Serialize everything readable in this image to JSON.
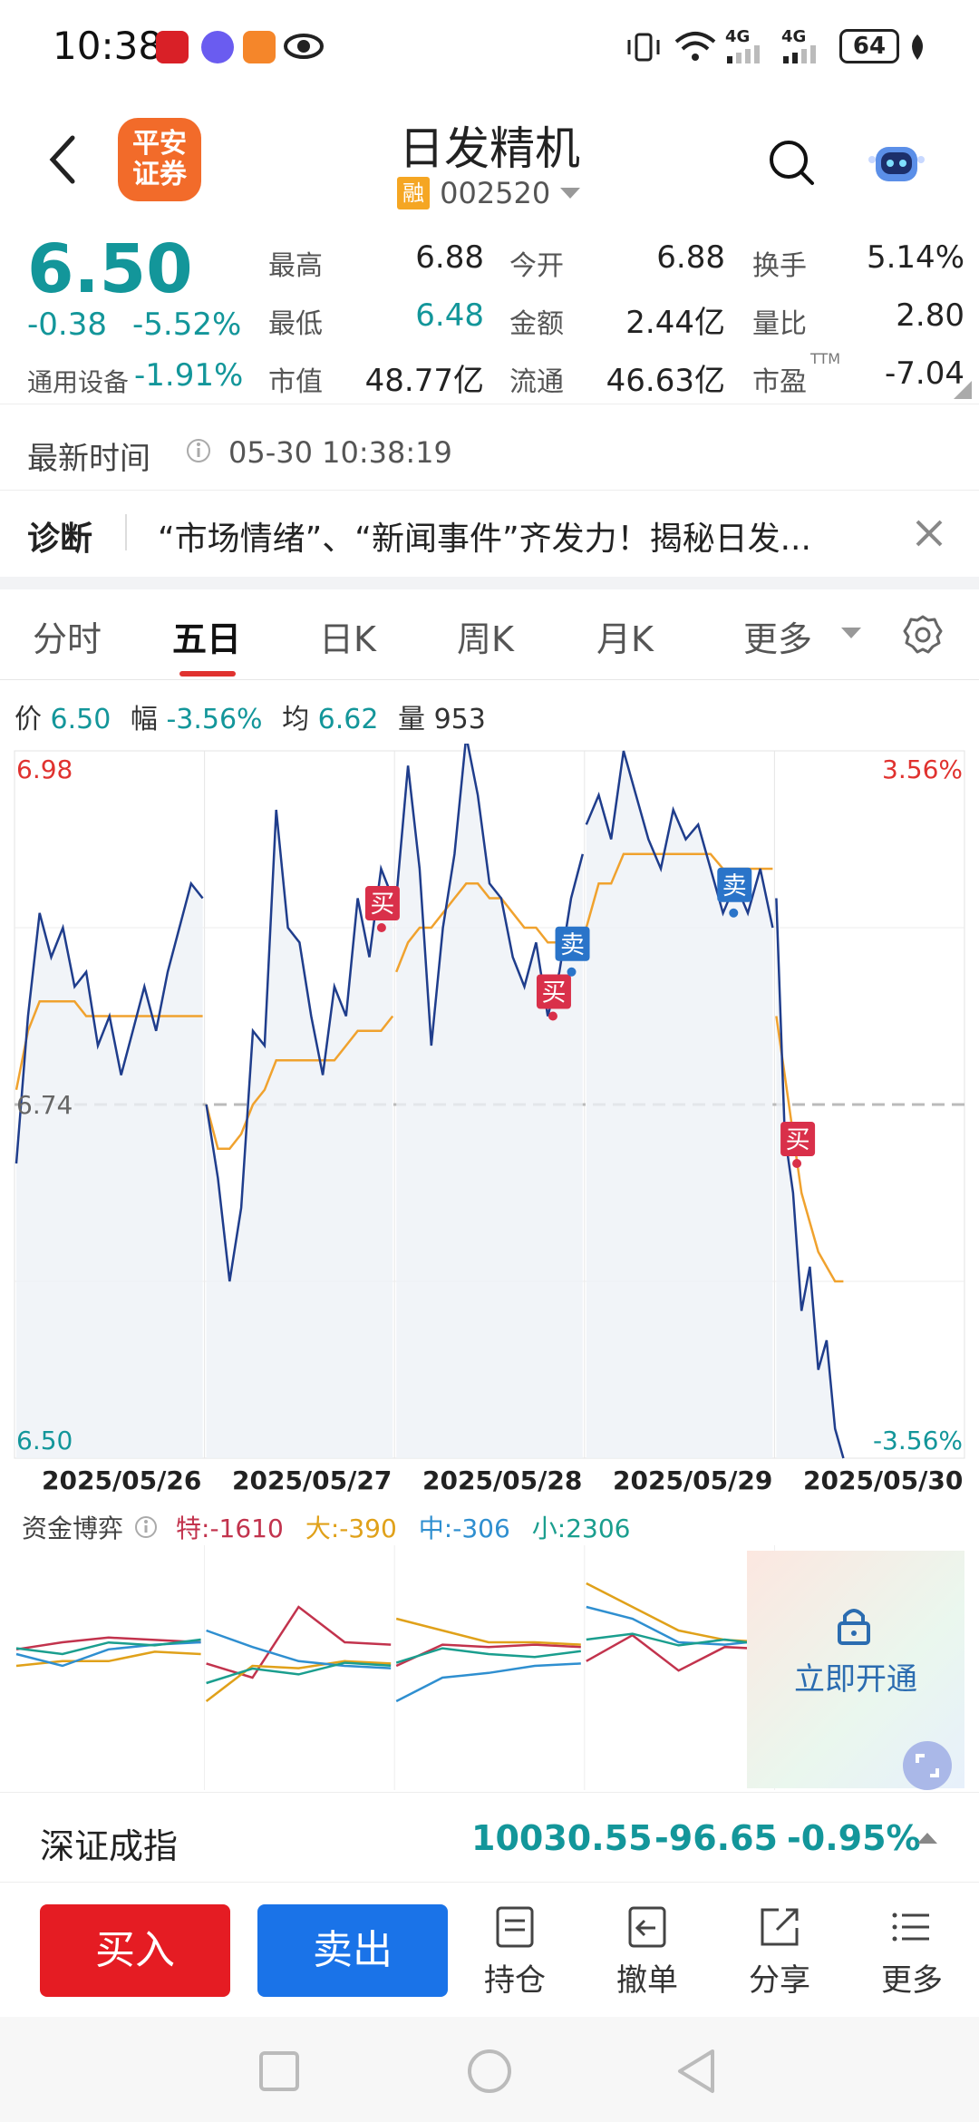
{
  "status_bar": {
    "time": "10:38",
    "battery": "64",
    "net1": "4G",
    "net2": "4G"
  },
  "header": {
    "stock_name": "日发精机",
    "logo_line1": "平安",
    "logo_line2": "证券",
    "badge": "融",
    "code": "002520"
  },
  "quote": {
    "price": "6.50",
    "change": "-0.38",
    "change_pct": "-5.52%",
    "sector": "通用设备",
    "sector_change": "-1.91%",
    "rows": [
      [
        {
          "label": "最高",
          "value": "6.88",
          "color": "#222222"
        },
        {
          "label": "今开",
          "value": "6.88",
          "color": "#222222"
        },
        {
          "label": "换手",
          "value": "5.14%",
          "color": "#222222"
        }
      ],
      [
        {
          "label": "最低",
          "value": "6.48",
          "color": "#13969a"
        },
        {
          "label": "金额",
          "value": "2.44亿",
          "color": "#222222"
        },
        {
          "label": "量比",
          "value": "2.80",
          "color": "#222222"
        }
      ],
      [
        {
          "label": "市值",
          "value": "48.77亿",
          "color": "#222222"
        },
        {
          "label": "流通",
          "value": "46.63亿",
          "color": "#222222"
        },
        {
          "label": "市盈",
          "value": "-7.04",
          "color": "#222222",
          "sup": "TTM"
        }
      ]
    ]
  },
  "latest": {
    "label": "最新时间",
    "value": "05-30 10:38:19"
  },
  "diagnosis": {
    "label": "诊断",
    "text": "“市场情绪”、“新闻事件”齐发力！揭秘日发..."
  },
  "tabs": [
    {
      "label": "分时",
      "active": false
    },
    {
      "label": "五日",
      "active": true
    },
    {
      "label": "日K",
      "active": false
    },
    {
      "label": "周K",
      "active": false
    },
    {
      "label": "月K",
      "active": false
    },
    {
      "label": "更多",
      "active": false
    }
  ],
  "chart_info": {
    "price_label": "价",
    "price": "6.50",
    "amp_label": "幅",
    "amp": "-3.56%",
    "avg_label": "均",
    "avg": "6.62",
    "vol_label": "量",
    "vol": "953"
  },
  "chart_data": {
    "type": "line",
    "x": [
      "2025/05/26",
      "2025/05/27",
      "2025/05/28",
      "2025/05/29",
      "2025/05/30"
    ],
    "ylim": [
      6.5,
      6.98
    ],
    "y_ticks_left": [
      "6.98",
      "6.74",
      "6.50"
    ],
    "y_ticks_right": [
      "3.56%",
      "-3.56%"
    ],
    "prev_close": 6.74,
    "series": [
      {
        "values_by_day": [
          [
            6.7,
            6.8,
            6.87,
            6.84,
            6.86,
            6.82,
            6.83,
            6.78,
            6.8,
            6.76,
            6.79,
            6.82,
            6.79,
            6.83,
            6.86,
            6.89,
            6.88
          ],
          [
            6.74,
            6.69,
            6.62,
            6.67,
            6.79,
            6.78,
            6.94,
            6.86,
            6.85,
            6.8,
            6.76,
            6.82,
            6.8,
            6.88,
            6.84,
            6.9,
            6.88
          ],
          [
            6.88,
            6.97,
            6.9,
            6.78,
            6.86,
            6.91,
            6.99,
            6.95,
            6.89,
            6.88,
            6.84,
            6.82,
            6.85,
            6.8,
            6.83,
            6.88,
            6.91
          ],
          [
            6.93,
            6.95,
            6.92,
            6.98,
            6.95,
            6.92,
            6.9,
            6.94,
            6.92,
            6.93,
            6.9,
            6.87,
            6.89,
            6.87,
            6.9,
            6.86
          ],
          [
            6.88,
            6.72,
            6.68,
            6.6,
            6.63,
            6.56,
            6.58,
            6.52,
            6.5
          ]
        ]
      },
      {
        "values_by_day": [
          [
            6.75,
            6.79,
            6.81,
            6.81,
            6.81,
            6.81,
            6.8,
            6.8,
            6.8,
            6.8,
            6.8,
            6.8,
            6.8,
            6.8,
            6.8,
            6.8,
            6.8
          ],
          [
            6.74,
            6.71,
            6.71,
            6.72,
            6.74,
            6.75,
            6.77,
            6.77,
            6.77,
            6.77,
            6.77,
            6.77,
            6.78,
            6.79,
            6.79,
            6.79,
            6.8
          ],
          [
            6.83,
            6.85,
            6.86,
            6.86,
            6.87,
            6.88,
            6.89,
            6.89,
            6.88,
            6.88,
            6.87,
            6.86,
            6.86,
            6.85,
            6.85,
            6.85,
            6.85
          ],
          [
            6.86,
            6.89,
            6.89,
            6.91,
            6.91,
            6.91,
            6.91,
            6.91,
            6.91,
            6.91,
            6.91,
            6.9,
            6.9,
            6.9,
            6.9,
            6.9
          ],
          [
            6.8,
            6.76,
            6.72,
            6.68,
            6.66,
            6.64,
            6.63,
            6.62,
            6.62
          ]
        ]
      }
    ],
    "trades": [
      {
        "label": "买",
        "kind": "buy",
        "day": 1,
        "at": 0.95,
        "price": 6.86
      },
      {
        "label": "买",
        "kind": "buy",
        "day": 2,
        "at": 0.85,
        "price": 6.8
      },
      {
        "label": "卖",
        "kind": "sell",
        "day": 2,
        "at": 0.95,
        "price": 6.83
      },
      {
        "label": "卖",
        "kind": "sell",
        "day": 3,
        "at": 0.8,
        "price": 6.87
      },
      {
        "label": "买",
        "kind": "buy",
        "day": 4,
        "at": 0.12,
        "price": 6.7
      }
    ]
  },
  "fund_flow": {
    "label": "资金博弈",
    "items": [
      {
        "label": "特:-1610",
        "color": "#c2334d"
      },
      {
        "label": "大:-390",
        "color": "#e0a11a"
      },
      {
        "label": "中:-306",
        "color": "#2f8fd0"
      },
      {
        "label": "小:2306",
        "color": "#1a9e8e"
      }
    ],
    "unlock": "立即开通"
  },
  "index_bar": {
    "name": "深证成指",
    "value": "10030.55",
    "change": "-96.65",
    "pct": "-0.95%"
  },
  "bottom": {
    "buy": "买入",
    "sell": "卖出",
    "tools": [
      "持仓",
      "撤单",
      "分享",
      "更多"
    ]
  },
  "colors": {
    "up": "#e0322f",
    "down": "#13969a",
    "price_line": "#1f3d8c",
    "avg_line": "#f0a22e",
    "buy_btn": "#e51c23",
    "sell_btn": "#1a73e8"
  }
}
